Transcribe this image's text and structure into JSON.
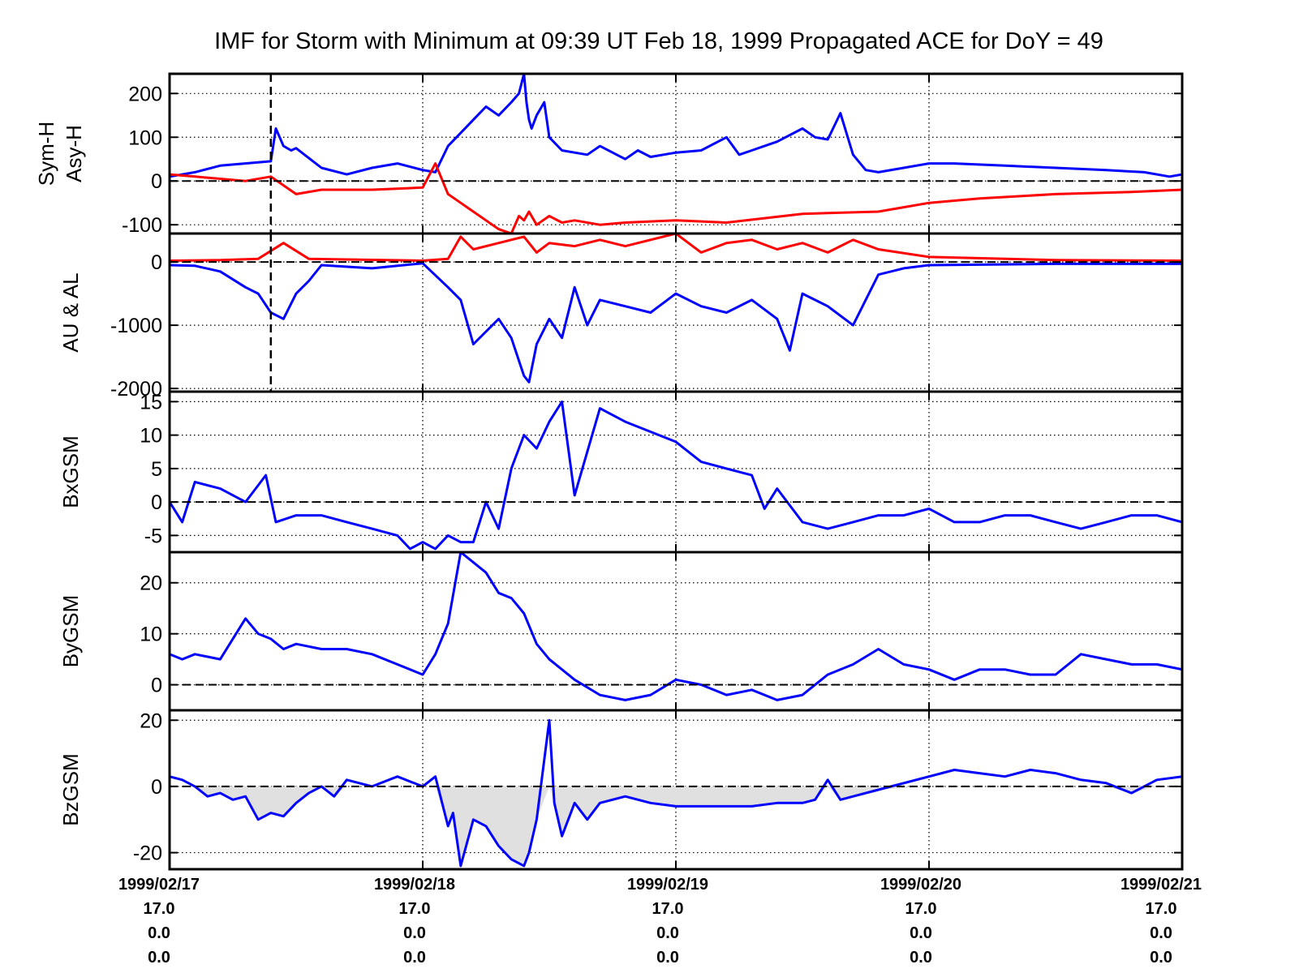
{
  "chart_data": {
    "type": "line",
    "title": "IMF for Storm with Minimum at 09:39 UT Feb 18, 1999  Propagated ACE for DoY = 49",
    "x_range": [
      0,
      4
    ],
    "x_ticks": [
      {
        "value": 0,
        "lines": [
          "1999/02/17",
          "17.0",
          "0.0",
          "0.0"
        ]
      },
      {
        "value": 1,
        "lines": [
          "1999/02/18",
          "17.0",
          "0.0",
          "0.0"
        ]
      },
      {
        "value": 2,
        "lines": [
          "1999/02/19",
          "17.0",
          "0.0",
          "0.0"
        ]
      },
      {
        "value": 3,
        "lines": [
          "1999/02/20",
          "17.0",
          "0.0",
          "0.0"
        ]
      },
      {
        "value": 4,
        "lines": [
          "1999/02/21",
          "17.0",
          "0.0",
          "0.0"
        ]
      }
    ],
    "storm_minimum_x": 0.4,
    "grid": true,
    "colors": {
      "blue": "#0000ff",
      "red": "#ff0000",
      "fill": "#e0e0e0",
      "axis": "#000000"
    },
    "panels": [
      {
        "ylabel": [
          "Sym-H",
          "Asy-H"
        ],
        "ylim": [
          -120,
          245
        ],
        "yticks": [
          200,
          100,
          0,
          -100
        ],
        "ytick_labels": [
          "200",
          "100",
          "0",
          "-100"
        ],
        "series": [
          {
            "color": "blue",
            "x": [
              0,
              0.05,
              0.1,
              0.2,
              0.4,
              0.42,
              0.45,
              0.48,
              0.5,
              0.6,
              0.7,
              0.8,
              0.9,
              1.0,
              1.05,
              1.1,
              1.15,
              1.2,
              1.25,
              1.3,
              1.35,
              1.38,
              1.4,
              1.41,
              1.42,
              1.43,
              1.45,
              1.48,
              1.5,
              1.55,
              1.6,
              1.65,
              1.7,
              1.8,
              1.85,
              1.9,
              2.0,
              2.1,
              2.2,
              2.25,
              2.3,
              2.35,
              2.4,
              2.5,
              2.55,
              2.6,
              2.65,
              2.7,
              2.75,
              2.8,
              2.9,
              3.0,
              3.1,
              3.3,
              3.5,
              3.7,
              3.85,
              3.95,
              4.0
            ],
            "y": [
              10,
              15,
              20,
              35,
              45,
              120,
              80,
              70,
              75,
              30,
              15,
              30,
              40,
              25,
              20,
              80,
              110,
              140,
              170,
              150,
              180,
              200,
              245,
              180,
              140,
              120,
              150,
              180,
              100,
              70,
              65,
              60,
              80,
              50,
              70,
              55,
              65,
              70,
              100,
              60,
              70,
              80,
              90,
              120,
              100,
              95,
              155,
              60,
              25,
              20,
              30,
              40,
              40,
              35,
              30,
              25,
              20,
              10,
              15
            ]
          },
          {
            "color": "red",
            "x": [
              0,
              0.1,
              0.2,
              0.3,
              0.4,
              0.45,
              0.5,
              0.6,
              0.8,
              1.0,
              1.05,
              1.1,
              1.15,
              1.2,
              1.25,
              1.3,
              1.35,
              1.38,
              1.4,
              1.42,
              1.45,
              1.5,
              1.55,
              1.6,
              1.7,
              1.8,
              2.0,
              2.2,
              2.5,
              2.8,
              3.0,
              3.2,
              3.5,
              3.8,
              4.0
            ],
            "y": [
              15,
              10,
              5,
              0,
              10,
              -10,
              -30,
              -20,
              -20,
              -15,
              40,
              -30,
              -50,
              -70,
              -90,
              -110,
              -120,
              -80,
              -90,
              -70,
              -100,
              -80,
              -95,
              -90,
              -100,
              -95,
              -90,
              -95,
              -75,
              -70,
              -50,
              -40,
              -30,
              -25,
              -20
            ]
          }
        ]
      },
      {
        "ylabel": [
          "AU & AL"
        ],
        "ylim": [
          -2050,
          450
        ],
        "yticks": [
          0,
          -1000,
          -2000
        ],
        "ytick_labels": [
          "0",
          "-1000",
          "-2000"
        ],
        "series": [
          {
            "color": "red",
            "x": [
              0,
              0.2,
              0.35,
              0.45,
              0.55,
              0.7,
              1.0,
              1.1,
              1.15,
              1.2,
              1.3,
              1.4,
              1.45,
              1.5,
              1.6,
              1.7,
              1.8,
              2.0,
              2.1,
              2.2,
              2.3,
              2.4,
              2.5,
              2.6,
              2.7,
              2.8,
              3.0,
              3.5,
              4.0
            ],
            "y": [
              20,
              30,
              50,
              300,
              50,
              40,
              20,
              50,
              400,
              200,
              300,
              400,
              150,
              300,
              250,
              350,
              250,
              450,
              150,
              300,
              350,
              200,
              300,
              150,
              350,
              200,
              80,
              30,
              20
            ]
          },
          {
            "color": "blue",
            "x": [
              0,
              0.1,
              0.2,
              0.3,
              0.35,
              0.4,
              0.45,
              0.5,
              0.55,
              0.6,
              0.8,
              1.0,
              1.1,
              1.15,
              1.2,
              1.3,
              1.35,
              1.4,
              1.42,
              1.45,
              1.5,
              1.55,
              1.6,
              1.65,
              1.7,
              1.8,
              1.9,
              2.0,
              2.1,
              2.2,
              2.3,
              2.4,
              2.45,
              2.5,
              2.6,
              2.7,
              2.8,
              2.9,
              3.0,
              3.5,
              4.0
            ],
            "y": [
              -50,
              -60,
              -150,
              -400,
              -500,
              -800,
              -900,
              -500,
              -300,
              -50,
              -100,
              -20,
              -400,
              -600,
              -1300,
              -900,
              -1200,
              -1800,
              -1900,
              -1300,
              -900,
              -1200,
              -400,
              -1000,
              -600,
              -700,
              -800,
              -500,
              -700,
              -800,
              -600,
              -900,
              -1400,
              -500,
              -700,
              -1000,
              -200,
              -100,
              -50,
              -30,
              -30
            ]
          }
        ]
      },
      {
        "ylabel": [
          "BxGSM"
        ],
        "ylim": [
          -7.5,
          16.5
        ],
        "yticks": [
          15,
          10,
          5,
          0,
          -5
        ],
        "ytick_labels": [
          "15",
          "10",
          "5",
          "0",
          "-5"
        ],
        "series": [
          {
            "color": "blue",
            "x": [
              0,
              0.05,
              0.1,
              0.2,
              0.3,
              0.38,
              0.42,
              0.5,
              0.6,
              0.7,
              0.8,
              0.9,
              0.95,
              1.0,
              1.05,
              1.1,
              1.15,
              1.2,
              1.25,
              1.3,
              1.35,
              1.4,
              1.45,
              1.5,
              1.55,
              1.6,
              1.7,
              1.8,
              2.0,
              2.1,
              2.2,
              2.3,
              2.35,
              2.4,
              2.5,
              2.6,
              2.7,
              2.8,
              2.9,
              3.0,
              3.1,
              3.2,
              3.3,
              3.4,
              3.5,
              3.6,
              3.7,
              3.8,
              3.9,
              4.0
            ],
            "y": [
              0,
              -3,
              3,
              2,
              0,
              4,
              -3,
              -2,
              -2,
              -3,
              -4,
              -5,
              -7,
              -6,
              -7,
              -5,
              -6,
              -6,
              0,
              -4,
              5,
              10,
              8,
              12,
              15,
              1,
              14,
              12,
              9,
              6,
              5,
              4,
              -1,
              2,
              -3,
              -4,
              -3,
              -2,
              -2,
              -1,
              -3,
              -3,
              -2,
              -2,
              -3,
              -4,
              -3,
              -2,
              -2,
              -3
            ]
          }
        ]
      },
      {
        "ylabel": [
          "ByGSM"
        ],
        "ylim": [
          -5,
          26
        ],
        "yticks": [
          20,
          10,
          0
        ],
        "ytick_labels": [
          "20",
          "10",
          "0"
        ],
        "series": [
          {
            "color": "blue",
            "x": [
              0,
              0.05,
              0.1,
              0.2,
              0.3,
              0.35,
              0.4,
              0.45,
              0.5,
              0.6,
              0.7,
              0.8,
              0.9,
              1.0,
              1.05,
              1.1,
              1.15,
              1.2,
              1.25,
              1.3,
              1.35,
              1.4,
              1.45,
              1.5,
              1.55,
              1.6,
              1.7,
              1.8,
              1.9,
              2.0,
              2.1,
              2.2,
              2.3,
              2.4,
              2.5,
              2.6,
              2.7,
              2.8,
              2.9,
              3.0,
              3.1,
              3.2,
              3.3,
              3.4,
              3.5,
              3.6,
              3.7,
              3.8,
              3.9,
              4.0
            ],
            "y": [
              6,
              5,
              6,
              5,
              13,
              10,
              9,
              7,
              8,
              7,
              7,
              6,
              4,
              2,
              6,
              12,
              26,
              24,
              22,
              18,
              17,
              14,
              8,
              5,
              3,
              1,
              -2,
              -3,
              -2,
              1,
              0,
              -2,
              -1,
              -3,
              -2,
              2,
              4,
              7,
              4,
              3,
              1,
              3,
              3,
              2,
              2,
              6,
              5,
              4,
              4,
              3
            ]
          }
        ]
      },
      {
        "ylabel": [
          "BzGSM"
        ],
        "ylim": [
          -25,
          23
        ],
        "yticks": [
          20,
          0,
          -20
        ],
        "ytick_labels": [
          "20",
          "0",
          "-20"
        ],
        "series": [
          {
            "color": "blue",
            "x": [
              0,
              0.05,
              0.1,
              0.15,
              0.2,
              0.25,
              0.3,
              0.35,
              0.4,
              0.45,
              0.5,
              0.55,
              0.6,
              0.65,
              0.7,
              0.8,
              0.9,
              1.0,
              1.05,
              1.1,
              1.12,
              1.15,
              1.2,
              1.25,
              1.3,
              1.35,
              1.4,
              1.42,
              1.45,
              1.5,
              1.52,
              1.55,
              1.6,
              1.65,
              1.7,
              1.8,
              1.9,
              2.0,
              2.1,
              2.2,
              2.3,
              2.4,
              2.5,
              2.55,
              2.6,
              2.65,
              2.7,
              2.8,
              3.0,
              3.1,
              3.2,
              3.3,
              3.4,
              3.5,
              3.6,
              3.7,
              3.8,
              3.9,
              4.0
            ],
            "y": [
              3,
              2,
              0,
              -3,
              -2,
              -4,
              -3,
              -10,
              -8,
              -9,
              -5,
              -2,
              0,
              -3,
              2,
              0,
              3,
              0,
              3,
              -12,
              -8,
              -24,
              -10,
              -12,
              -18,
              -22,
              -24,
              -20,
              -10,
              20,
              -5,
              -15,
              -5,
              -10,
              -5,
              -3,
              -5,
              -6,
              -6,
              -6,
              -6,
              -5,
              -5,
              -4,
              2,
              -4,
              -3,
              -1,
              3,
              5,
              4,
              3,
              5,
              4,
              2,
              1,
              -2,
              2,
              3
            ]
          }
        ],
        "fill_negative": true
      }
    ]
  }
}
